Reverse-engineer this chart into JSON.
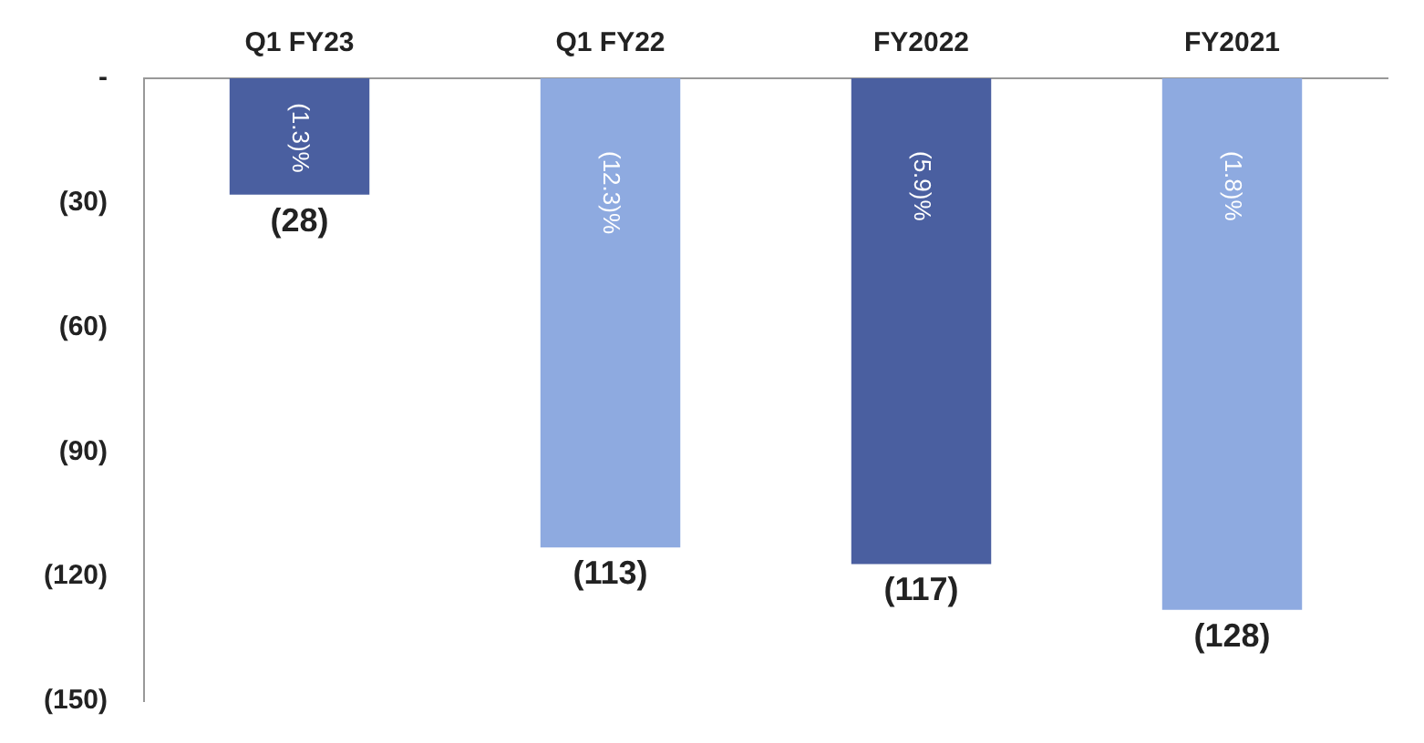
{
  "chart_data": {
    "type": "bar",
    "categories": [
      "Q1 FY23",
      "Q1 FY22",
      "FY2022",
      "FY2021"
    ],
    "values": [
      -28,
      -113,
      -117,
      -128
    ],
    "colors": [
      "#4a5fa0",
      "#8eaae0",
      "#4a5fa0",
      "#8eaae0"
    ],
    "value_labels": [
      "(28)",
      "(113)",
      "(117)",
      "(128)"
    ],
    "annotations": [
      "(1.3)%",
      "(12.3)%",
      "(5.9)%",
      "(1.8)%"
    ],
    "ylim": [
      -150,
      0
    ],
    "yticks": [
      {
        "value": 0,
        "label": "-"
      },
      {
        "value": -30,
        "label": "(30)"
      },
      {
        "value": -60,
        "label": "(60)"
      },
      {
        "value": -90,
        "label": "(90)"
      },
      {
        "value": -120,
        "label": "(120)"
      },
      {
        "value": -150,
        "label": "(150)"
      }
    ],
    "grid": false,
    "legend": false
  }
}
